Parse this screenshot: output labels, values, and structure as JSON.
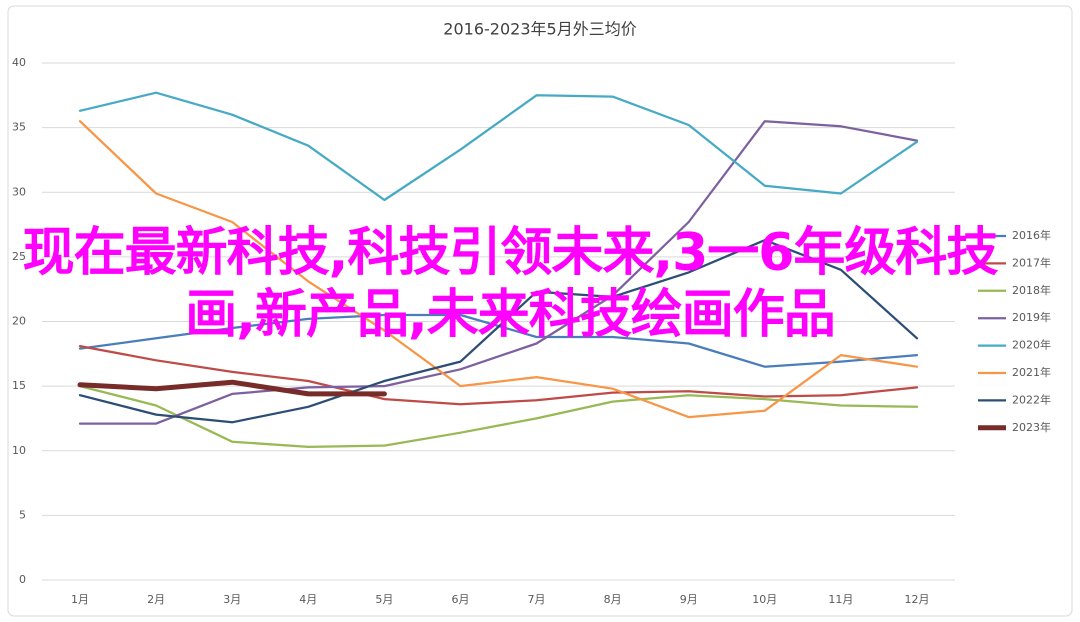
{
  "chart_data": {
    "type": "line",
    "title": "2016-2023年5月外三均价",
    "categories": [
      "1月",
      "2月",
      "3月",
      "4月",
      "5月",
      "6月",
      "7月",
      "8月",
      "9月",
      "10月",
      "11月",
      "12月"
    ],
    "ylim": [
      0,
      40
    ],
    "yticks": [
      0,
      5,
      10,
      15,
      20,
      25,
      30,
      35,
      40
    ],
    "grid": true,
    "legend": "right",
    "series": [
      {
        "name": "2016年",
        "color": "#4a7ebb",
        "values": [
          17.9,
          18.7,
          19.5,
          20.2,
          20.5,
          20.5,
          18.8,
          18.8,
          18.3,
          16.5,
          16.9,
          17.4
        ]
      },
      {
        "name": "2017年",
        "color": "#be4b48",
        "values": [
          18.1,
          17.0,
          16.1,
          15.4,
          14.0,
          13.6,
          13.9,
          14.5,
          14.6,
          14.2,
          14.3,
          14.9
        ]
      },
      {
        "name": "2018年",
        "color": "#98b954",
        "values": [
          15.0,
          13.5,
          10.7,
          10.3,
          10.4,
          11.4,
          12.5,
          13.8,
          14.3,
          14.0,
          13.5,
          13.4
        ]
      },
      {
        "name": "2019年",
        "color": "#7d60a0",
        "values": [
          12.1,
          12.1,
          14.4,
          14.9,
          15.0,
          16.3,
          18.3,
          22.0,
          27.7,
          35.5,
          35.1,
          34.0
        ]
      },
      {
        "name": "2020年",
        "color": "#46aac5",
        "values": [
          36.3,
          37.7,
          36.0,
          33.6,
          29.4,
          33.3,
          37.5,
          37.4,
          35.2,
          30.5,
          29.9,
          33.9
        ]
      },
      {
        "name": "2021年",
        "color": "#f79646",
        "values": [
          35.5,
          29.9,
          27.7,
          23.1,
          19.3,
          15.0,
          15.7,
          14.8,
          12.6,
          13.1,
          17.4,
          16.5
        ]
      },
      {
        "name": "2022年",
        "color": "#2c4d75",
        "values": [
          14.3,
          12.8,
          12.2,
          13.4,
          15.4,
          16.9,
          22.3,
          21.9,
          23.8,
          26.3,
          24.0,
          18.7
        ]
      },
      {
        "name": "2023年",
        "color": "#772c2a",
        "values": [
          15.1,
          14.8,
          15.3,
          14.4,
          14.4,
          null,
          null,
          null,
          null,
          null,
          null,
          null
        ]
      }
    ]
  },
  "overlay_text": "现在最新科技,科技引领未来,3一6年级科技画,新产品,未来科技绘画作品"
}
